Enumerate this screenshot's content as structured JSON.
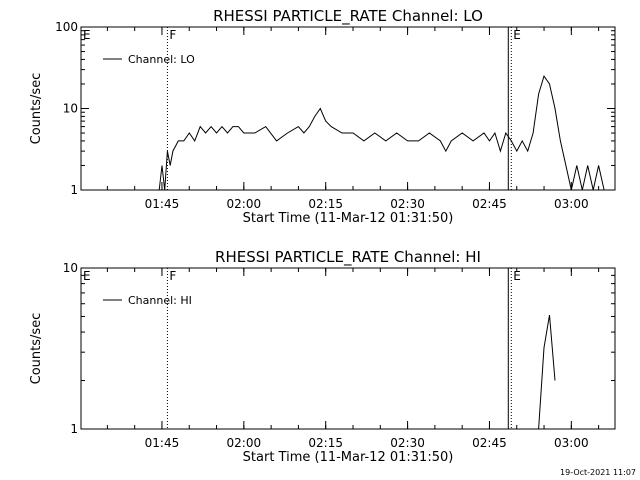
{
  "chart_data": [
    {
      "type": "line",
      "title": "RHESSI PARTICLE_RATE Channel: LO",
      "xlabel": "Start Time (11-Mar-12 01:31:50)",
      "ylabel": "Counts/sec",
      "yscale": "log",
      "ylim": [
        1,
        100
      ],
      "y_ticks": [
        "1",
        "10",
        "100"
      ],
      "x_ticks": [
        "01:45",
        "02:00",
        "02:15",
        "02:30",
        "02:45",
        "03:00"
      ],
      "legend": "top-left",
      "legend_label": "Channel: LO",
      "markers": [
        {
          "label": "E",
          "x": "01:35",
          "style": "none"
        },
        {
          "label": "F",
          "x": "01:46",
          "style": "dotted"
        },
        {
          "label": "E",
          "x": "02:49",
          "style": "solid"
        },
        {
          "label": "",
          "x": "03:08",
          "style": "dotted"
        }
      ],
      "series": [
        {
          "x": [
            "01:44.5",
            "01:45",
            "01:45.5",
            "01:46",
            "01:46.5",
            "01:47",
            "01:48",
            "01:49",
            "01:50",
            "01:51",
            "01:52",
            "01:53",
            "01:54",
            "01:55",
            "01:56",
            "01:57",
            "01:58",
            "01:59",
            "02:00",
            "02:02",
            "02:04",
            "02:06",
            "02:08",
            "02:10",
            "02:11",
            "02:12",
            "02:13",
            "02:14",
            "02:15",
            "02:16",
            "02:18",
            "02:20",
            "02:22",
            "02:24",
            "02:26",
            "02:28",
            "02:30",
            "02:32",
            "02:34",
            "02:36",
            "02:37",
            "02:38",
            "02:40",
            "02:42",
            "02:44",
            "02:45",
            "02:46",
            "02:47",
            "02:48",
            "02:49",
            "02:50",
            "02:51",
            "02:52",
            "02:53",
            "02:54",
            "02:55",
            "02:56",
            "02:57",
            "02:58",
            "02:59",
            "03:00",
            "03:01",
            "03:02",
            "03:03",
            "03:04",
            "03:05",
            "03:06"
          ],
          "y": [
            1,
            2,
            1,
            3,
            2,
            3,
            4,
            4,
            5,
            4,
            6,
            5,
            6,
            5,
            6,
            5,
            6,
            6,
            5,
            5,
            6,
            4,
            5,
            6,
            5,
            6,
            8,
            10,
            7,
            6,
            5,
            5,
            4,
            5,
            4,
            5,
            4,
            4,
            5,
            4,
            3,
            4,
            5,
            4,
            5,
            4,
            5,
            3,
            5,
            4,
            3,
            4,
            3,
            5,
            15,
            25,
            20,
            10,
            4,
            2,
            1,
            2,
            1,
            2,
            1,
            2,
            1
          ]
        }
      ]
    },
    {
      "type": "line",
      "title": "RHESSI PARTICLE_RATE Channel: HI",
      "xlabel": "Start Time (11-Mar-12 01:31:50)",
      "ylabel": "Counts/sec",
      "yscale": "log",
      "ylim": [
        1,
        10
      ],
      "y_ticks": [
        "1",
        "10"
      ],
      "x_ticks": [
        "01:45",
        "02:00",
        "02:15",
        "02:30",
        "02:45",
        "03:00"
      ],
      "legend": "top-left",
      "legend_label": "Channel: HI",
      "markers": [
        {
          "label": "E",
          "x": "01:35",
          "style": "none"
        },
        {
          "label": "F",
          "x": "01:46",
          "style": "dotted"
        },
        {
          "label": "E",
          "x": "02:49",
          "style": "solid"
        },
        {
          "label": "",
          "x": "03:08",
          "style": "dotted"
        }
      ],
      "series": [
        {
          "x": [
            "02:54",
            "02:55",
            "02:56",
            "02:57"
          ],
          "y": [
            1,
            3.2,
            5.1,
            2
          ]
        }
      ]
    }
  ],
  "footer": {
    "timestamp": "19-Oct-2021 11:07"
  }
}
